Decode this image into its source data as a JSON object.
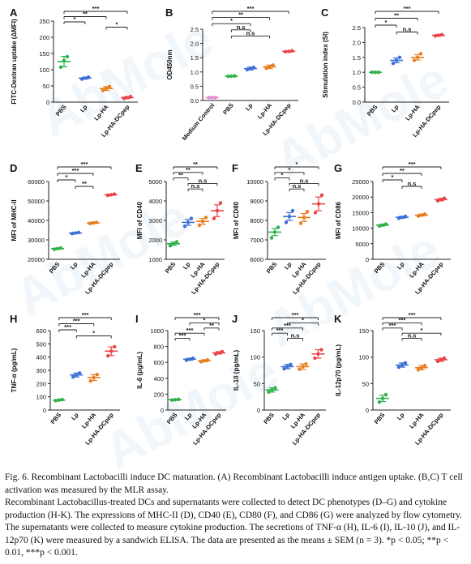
{
  "watermark": "AbMole",
  "colors": {
    "PBS": "#2db24a",
    "Lp": "#3b6fd6",
    "Lp-HA": "#e87d1e",
    "Lp-HA-DCpep": "#e8444a",
    "Medium Control": "#e48ad8",
    "line": "#222222",
    "sig_line": "#3a74c9",
    "wm": "#a8c8e8"
  },
  "chart_data": [
    {
      "id": "A",
      "type": "scatter",
      "letter": "A",
      "ylabel": "FITC-Dextran uptake (ΔMFI)",
      "categories": [
        "PBS",
        "Lp",
        "Lp-HA",
        "Lp-HA-DCpep"
      ],
      "ylim": [
        0,
        250
      ],
      "yticks": [
        0,
        50,
        100,
        150,
        200,
        250
      ],
      "mean": [
        125,
        74,
        42,
        14
      ],
      "sem": [
        16,
        3,
        6,
        3
      ],
      "points": [
        [
          108,
          128,
          140
        ],
        [
          71,
          74,
          77
        ],
        [
          36,
          42,
          48
        ],
        [
          11,
          14,
          17
        ]
      ],
      "sig": [
        {
          "a": 0,
          "b": 3,
          "label": "***"
        },
        {
          "a": 0,
          "b": 2,
          "label": "**"
        },
        {
          "a": 0,
          "b": 1,
          "label": "*"
        },
        {
          "a": 2,
          "b": 3,
          "label": "*"
        }
      ]
    },
    {
      "id": "B",
      "type": "scatter",
      "letter": "B",
      "ylabel": "OD450nm",
      "categories": [
        "Medium Control",
        "PBS",
        "Lp",
        "Lp-HA",
        "Lp-HA-DCpep"
      ],
      "ylim": [
        0,
        2.5
      ],
      "yticks": [
        0.0,
        0.5,
        1.0,
        1.5,
        2.0,
        2.5
      ],
      "mean": [
        0.1,
        0.85,
        1.12,
        1.18,
        1.72
      ],
      "sem": [
        0.01,
        0.01,
        0.05,
        0.06,
        0.02
      ],
      "points": [
        [
          0.1,
          0.1,
          0.1
        ],
        [
          0.85,
          0.85,
          0.86
        ],
        [
          1.08,
          1.12,
          1.16
        ],
        [
          1.13,
          1.18,
          1.24
        ],
        [
          1.71,
          1.72,
          1.74
        ]
      ],
      "sig": [
        {
          "a": 0,
          "b": 4,
          "label": "***"
        },
        {
          "a": 0,
          "b": 3,
          "label": "**"
        },
        {
          "a": 0,
          "b": 2,
          "label": "*"
        },
        {
          "a": 1,
          "b": 2,
          "label": "n.s"
        },
        {
          "a": 1,
          "b": 3,
          "label": "n.s"
        }
      ]
    },
    {
      "id": "C",
      "type": "scatter",
      "letter": "C",
      "ylabel": "Stimulation index (SI)",
      "categories": [
        "PBS",
        "Lp",
        "Lp-HA",
        "Lp-HA-DCpep"
      ],
      "ylim": [
        0,
        2.5
      ],
      "yticks": [
        0.0,
        0.5,
        1.0,
        1.5,
        2.0,
        2.5
      ],
      "mean": [
        1.0,
        1.4,
        1.5,
        2.24
      ],
      "sem": [
        0.01,
        0.08,
        0.09,
        0.02
      ],
      "points": [
        [
          1.0,
          1.0,
          1.0
        ],
        [
          1.3,
          1.4,
          1.5
        ],
        [
          1.4,
          1.5,
          1.62
        ],
        [
          2.22,
          2.24,
          2.26
        ]
      ],
      "sig": [
        {
          "a": 0,
          "b": 3,
          "label": "***"
        },
        {
          "a": 0,
          "b": 2,
          "label": "**"
        },
        {
          "a": 0,
          "b": 1,
          "label": "*"
        },
        {
          "a": 1,
          "b": 2,
          "label": "n.s"
        }
      ]
    },
    {
      "id": "D",
      "type": "scatter",
      "letter": "D",
      "ylabel": "MFI of MHC-II",
      "categories": [
        "PBS",
        "Lp",
        "Lp-HA",
        "Lp-HA-DCpep"
      ],
      "ylim": [
        20000,
        60000
      ],
      "yticks": [
        20000,
        30000,
        40000,
        50000,
        60000
      ],
      "mean": [
        25500,
        33500,
        38700,
        53200
      ],
      "sem": [
        300,
        300,
        300,
        300
      ],
      "points": [
        [
          25200,
          25500,
          25800
        ],
        [
          33200,
          33500,
          33800
        ],
        [
          38400,
          38700,
          39000
        ],
        [
          52900,
          53200,
          53500
        ]
      ],
      "sig": [
        {
          "a": 0,
          "b": 3,
          "label": "***"
        },
        {
          "a": 0,
          "b": 2,
          "label": "***"
        },
        {
          "a": 0,
          "b": 1,
          "label": "*"
        },
        {
          "a": 1,
          "b": 2,
          "label": "**"
        }
      ]
    },
    {
      "id": "E",
      "type": "scatter",
      "letter": "E",
      "ylabel": "MFI of CD40",
      "categories": [
        "PBS",
        "Lp",
        "Lp-HA",
        "Lp-HA-DCpep"
      ],
      "ylim": [
        1000,
        5000
      ],
      "yticks": [
        1000,
        2000,
        3000,
        4000,
        5000
      ],
      "mean": [
        1800,
        2900,
        2950,
        3500
      ],
      "sem": [
        80,
        150,
        150,
        300
      ],
      "points": [
        [
          1700,
          1800,
          1900
        ],
        [
          2700,
          2900,
          3100
        ],
        [
          2750,
          2950,
          3150
        ],
        [
          3100,
          3500,
          3900
        ]
      ],
      "sig": [
        {
          "a": 0,
          "b": 3,
          "label": "**"
        },
        {
          "a": 0,
          "b": 2,
          "label": "**"
        },
        {
          "a": 0,
          "b": 1,
          "label": "**"
        },
        {
          "a": 1,
          "b": 3,
          "label": "n.s"
        },
        {
          "a": 1,
          "b": 2,
          "label": "n.s"
        }
      ]
    },
    {
      "id": "F",
      "type": "scatter",
      "letter": "F",
      "ylabel": "MFI of CD80",
      "categories": [
        "PBS",
        "Lp",
        "Lp-HA",
        "Lp-HA-DCpep"
      ],
      "ylim": [
        6000,
        10000
      ],
      "yticks": [
        6000,
        7000,
        8000,
        9000,
        10000
      ],
      "mean": [
        7400,
        8200,
        8150,
        8850
      ],
      "sem": [
        180,
        200,
        200,
        350
      ],
      "points": [
        [
          7100,
          7400,
          7650
        ],
        [
          7900,
          8200,
          8500
        ],
        [
          7850,
          8150,
          8450
        ],
        [
          8400,
          8850,
          9300
        ]
      ],
      "sig": [
        {
          "a": 0,
          "b": 3,
          "label": "*"
        },
        {
          "a": 0,
          "b": 2,
          "label": "*"
        },
        {
          "a": 0,
          "b": 1,
          "label": "*"
        },
        {
          "a": 1,
          "b": 3,
          "label": "n.s"
        },
        {
          "a": 1,
          "b": 2,
          "label": "n.s"
        }
      ]
    },
    {
      "id": "G",
      "type": "scatter",
      "letter": "G",
      "ylabel": "MFI of CD86",
      "categories": [
        "PBS",
        "Lp",
        "Lp-HA",
        "Lp-HA-DCpep"
      ],
      "ylim": [
        0,
        25000
      ],
      "yticks": [
        0,
        5000,
        10000,
        15000,
        20000,
        25000
      ],
      "mean": [
        11000,
        13500,
        14200,
        19200
      ],
      "sem": [
        250,
        300,
        300,
        350
      ],
      "points": [
        [
          10700,
          11000,
          11300
        ],
        [
          13200,
          13500,
          13800
        ],
        [
          13900,
          14200,
          14500
        ],
        [
          18800,
          19200,
          19600
        ]
      ],
      "sig": [
        {
          "a": 0,
          "b": 3,
          "label": "***"
        },
        {
          "a": 0,
          "b": 2,
          "label": "**"
        },
        {
          "a": 0,
          "b": 1,
          "label": "*"
        },
        {
          "a": 1,
          "b": 2,
          "label": "n.s"
        }
      ]
    },
    {
      "id": "H",
      "type": "scatter",
      "letter": "H",
      "ylabel": "TNF-α (pg/mL)",
      "categories": [
        "PBS",
        "Lp",
        "Lp-HA",
        "Lp-HA-DCpep"
      ],
      "ylim": [
        0,
        600
      ],
      "yticks": [
        0,
        100,
        200,
        300,
        400,
        500,
        600
      ],
      "mean": [
        75,
        265,
        245,
        445
      ],
      "sem": [
        4,
        15,
        22,
        32
      ],
      "points": [
        [
          71,
          75,
          79
        ],
        [
          250,
          265,
          280
        ],
        [
          220,
          245,
          268
        ],
        [
          410,
          445,
          478
        ]
      ],
      "sig": [
        {
          "a": 0,
          "b": 3,
          "label": "***"
        },
        {
          "a": 0,
          "b": 2,
          "label": "***"
        },
        {
          "a": 0,
          "b": 1,
          "label": "***"
        },
        {
          "a": 1,
          "b": 3,
          "label": "*"
        }
      ]
    },
    {
      "id": "I",
      "type": "scatter",
      "letter": "I",
      "ylabel": "IL-6 (pg/mL)",
      "categories": [
        "PBS",
        "Lp",
        "Lp-HA",
        "Lp-HA-DCpep"
      ],
      "ylim": [
        0,
        1000
      ],
      "yticks": [
        0,
        200,
        400,
        600,
        800,
        1000
      ],
      "mean": [
        130,
        640,
        620,
        720
      ],
      "sem": [
        4,
        12,
        12,
        15
      ],
      "points": [
        [
          126,
          130,
          134
        ],
        [
          628,
          640,
          652
        ],
        [
          608,
          620,
          632
        ],
        [
          705,
          720,
          735
        ]
      ],
      "sig": [
        {
          "a": 0,
          "b": 3,
          "label": "***"
        },
        {
          "a": 1,
          "b": 3,
          "label": "*"
        },
        {
          "a": 2,
          "b": 3,
          "label": "**"
        },
        {
          "a": 0,
          "b": 2,
          "label": "***"
        },
        {
          "a": 0,
          "b": 1,
          "label": "***"
        }
      ]
    },
    {
      "id": "J",
      "type": "scatter",
      "letter": "J",
      "ylabel": "IL-10 (pg/mL)",
      "categories": [
        "PBS",
        "Lp",
        "Lp-HA",
        "Lp-HA-DCpep"
      ],
      "ylim": [
        0,
        150
      ],
      "yticks": [
        0,
        50,
        100,
        150
      ],
      "mean": [
        38,
        82,
        82,
        106
      ],
      "sem": [
        4,
        4,
        5,
        8
      ],
      "points": [
        [
          34,
          38,
          42
        ],
        [
          78,
          82,
          86
        ],
        [
          77,
          82,
          87
        ],
        [
          98,
          106,
          114
        ]
      ],
      "sig": [
        {
          "a": 0,
          "b": 3,
          "label": "***"
        },
        {
          "a": 1,
          "b": 3,
          "label": "*"
        },
        {
          "a": 0,
          "b": 2,
          "label": "***"
        },
        {
          "a": 0,
          "b": 1,
          "label": "***"
        },
        {
          "a": 1,
          "b": 2,
          "label": "n.s"
        }
      ]
    },
    {
      "id": "K",
      "type": "scatter",
      "letter": "K",
      "ylabel": "IL-12p70 (pg/mL)",
      "categories": [
        "PBS",
        "Lp",
        "Lp-HA",
        "Lp-HA-DCpep"
      ],
      "ylim": [
        0,
        150
      ],
      "yticks": [
        0,
        50,
        100,
        150
      ],
      "mean": [
        22,
        85,
        80,
        95
      ],
      "sem": [
        6,
        4,
        4,
        3
      ],
      "points": [
        [
          15,
          22,
          29
        ],
        [
          81,
          85,
          89
        ],
        [
          76,
          80,
          84
        ],
        [
          92,
          95,
          98
        ]
      ],
      "sig": [
        {
          "a": 0,
          "b": 3,
          "label": "***"
        },
        {
          "a": 0,
          "b": 2,
          "label": "***"
        },
        {
          "a": 0,
          "b": 1,
          "label": "***"
        },
        {
          "a": 1,
          "b": 3,
          "label": "*"
        },
        {
          "a": 1,
          "b": 2,
          "label": "n.s"
        }
      ]
    }
  ],
  "caption": {
    "line1": "Fig. 6. Recombinant Lactobacilli induce DC maturation. (A) Recombinant Lactobacilli induce antigen uptake. (B,C) T cell activation was measured by the MLR assay.",
    "line2": "Recombinant Lactobacillus-treated DCs and supernatants were collected to detect DC phenotypes (D–G) and cytokine production (H-K). The expressions of MHC-II (D), CD40 (E), CD80 (F), and CD86 (G) were analyzed by flow cytometry. The supernatants were collected to measure cytokine production. The secretions of TNF-α (H), IL-6 (I), IL-10 (J), and IL-12p70 (K) were measured by a sandwich ELISA. The data are presented as the means ± SEM (n = 3). *p < 0.05; **p < 0.01, ***p < 0.001."
  }
}
